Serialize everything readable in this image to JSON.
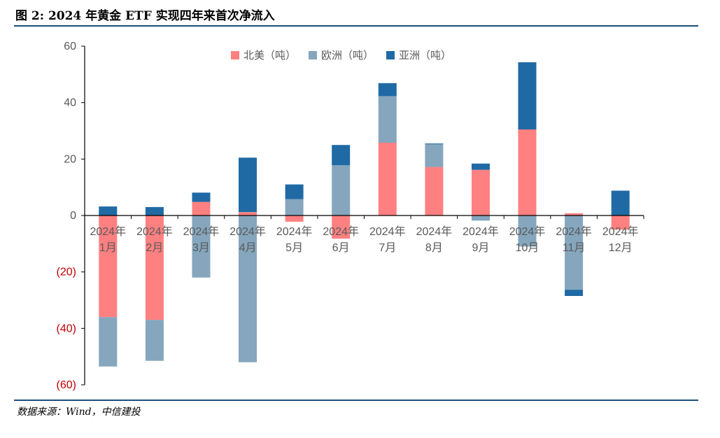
{
  "header": {
    "title": "图 2: 2024 年黄金 ETF 实现四年来首次净流入"
  },
  "footer": {
    "source": "数据来源：Wind，中信建投"
  },
  "colors": {
    "north_america": "#ff8080",
    "europe": "#85a6bd",
    "asia": "#1f6aa5",
    "rule": "#1f4e79",
    "negative_tick": "#c00000",
    "tick": "#595959"
  },
  "chart_data": {
    "type": "bar",
    "stacked": true,
    "title": "",
    "xlabel": "",
    "ylabel": "",
    "ylim": [
      -60,
      60
    ],
    "yticks": [
      60,
      40,
      20,
      0,
      -20,
      -40,
      -60
    ],
    "ytick_labels": [
      "60",
      "40",
      "20",
      "0",
      "(20)",
      "(40)",
      "(60)"
    ],
    "categories": [
      [
        "2024年",
        "1月"
      ],
      [
        "2024年",
        "2月"
      ],
      [
        "2024年",
        "3月"
      ],
      [
        "2024年",
        "4月"
      ],
      [
        "2024年",
        "5月"
      ],
      [
        "2024年",
        "6月"
      ],
      [
        "2024年",
        "7月"
      ],
      [
        "2024年",
        "8月"
      ],
      [
        "2024年",
        "9月"
      ],
      [
        "2024年",
        "10月"
      ],
      [
        "2024年",
        "11月"
      ],
      [
        "2024年",
        "12月"
      ]
    ],
    "legend_position": "top-center",
    "series": [
      {
        "name": "北美（吨）",
        "color_key": "north_america",
        "values": [
          -36,
          -37,
          4.8,
          1.2,
          -2.2,
          -8.2,
          25.8,
          17.2,
          16.2,
          30.5,
          0.8,
          -5
        ]
      },
      {
        "name": "欧洲（吨）",
        "color_key": "europe",
        "values": [
          -17.5,
          -14.5,
          -22,
          -52,
          5.8,
          17.8,
          16.5,
          8,
          -1.8,
          -11,
          -26.3,
          0
        ]
      },
      {
        "name": "亚洲（吨）",
        "color_key": "asia",
        "values": [
          3.2,
          3,
          3.3,
          19.3,
          5.2,
          7.2,
          4.6,
          0.3,
          2.2,
          23.8,
          -2.2,
          8.8
        ]
      }
    ]
  }
}
